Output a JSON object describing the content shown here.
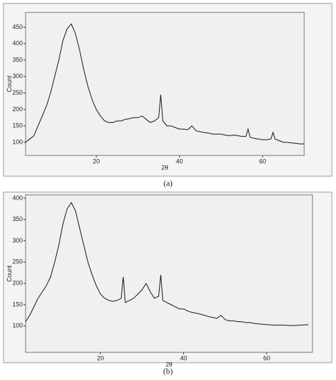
{
  "chart_data": [
    {
      "type": "line",
      "caption": "(a)",
      "xlabel": "2θ",
      "ylabel": "Count",
      "x": [
        3,
        4,
        5,
        6,
        7,
        8,
        9,
        10,
        11,
        12,
        13,
        14,
        15,
        16,
        17,
        18,
        19,
        20,
        21,
        22,
        23,
        24,
        25,
        26,
        27,
        28,
        29,
        30,
        31,
        32,
        33,
        34,
        35,
        35.5,
        36,
        37,
        38,
        39,
        40,
        41,
        42,
        43,
        44,
        45,
        46,
        47,
        48,
        49,
        50,
        51,
        52,
        53,
        54,
        55,
        56,
        56.5,
        57,
        58,
        59,
        60,
        61,
        62,
        62.5,
        63,
        64,
        65,
        66,
        67,
        68,
        69,
        70
      ],
      "series": [
        {
          "color": "#111111",
          "values": [
            100,
            110,
            120,
            150,
            180,
            210,
            250,
            300,
            350,
            410,
            445,
            460,
            430,
            380,
            320,
            270,
            230,
            200,
            180,
            165,
            160,
            160,
            165,
            165,
            170,
            172,
            175,
            175,
            180,
            170,
            160,
            165,
            175,
            245,
            165,
            150,
            150,
            145,
            140,
            140,
            138,
            150,
            135,
            132,
            130,
            128,
            125,
            125,
            125,
            122,
            120,
            122,
            120,
            118,
            118,
            140,
            115,
            112,
            110,
            108,
            108,
            110,
            130,
            110,
            105,
            100,
            100,
            98,
            97,
            95,
            95
          ]
        }
      ],
      "xlim": [
        3,
        70
      ],
      "ylim": [
        60,
        495
      ],
      "xticks": [
        20,
        40,
        60
      ],
      "yticks": [
        100,
        150,
        200,
        250,
        300,
        350,
        400,
        450
      ]
    },
    {
      "type": "line",
      "caption": "(b)",
      "xlabel": "2θ",
      "ylabel": "Count",
      "x": [
        2,
        3,
        4,
        5,
        6,
        7,
        8,
        9,
        10,
        11,
        12,
        13,
        14,
        15,
        16,
        17,
        18,
        19,
        20,
        21,
        22,
        23,
        24,
        25,
        25.5,
        26,
        27,
        28,
        29,
        30,
        31,
        32,
        33,
        34,
        34.5,
        35,
        36,
        37,
        38,
        39,
        40,
        41,
        42,
        43,
        44,
        45,
        46,
        47,
        48,
        49,
        50,
        51,
        52,
        53,
        54,
        55,
        56,
        57,
        58,
        59,
        60,
        62,
        64,
        66,
        68,
        70
      ],
      "series": [
        {
          "color": "#111111",
          "values": [
            110,
            125,
            145,
            165,
            180,
            195,
            215,
            250,
            290,
            340,
            375,
            390,
            370,
            330,
            290,
            250,
            220,
            195,
            175,
            165,
            160,
            158,
            160,
            165,
            215,
            155,
            160,
            165,
            175,
            185,
            200,
            180,
            165,
            170,
            220,
            160,
            155,
            150,
            145,
            140,
            140,
            135,
            132,
            130,
            128,
            125,
            122,
            120,
            118,
            125,
            115,
            112,
            112,
            110,
            110,
            108,
            108,
            106,
            105,
            104,
            103,
            102,
            102,
            101,
            102,
            103
          ]
        }
      ],
      "xlim": [
        2,
        71
      ],
      "ylim": [
        38,
        408
      ],
      "xticks": [
        20,
        40,
        60
      ],
      "yticks": [
        100,
        150,
        200,
        250,
        300,
        350,
        400
      ]
    }
  ]
}
